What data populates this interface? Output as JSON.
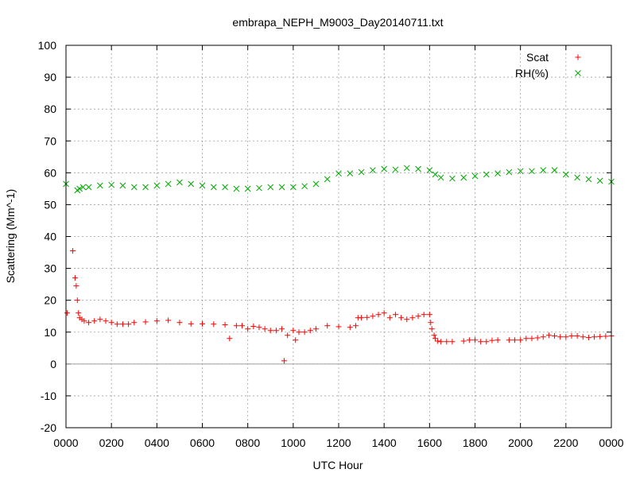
{
  "chart_data": {
    "type": "scatter",
    "title": "embrapa_NEPH_M9003_Day20140711.txt",
    "xlabel": "UTC Hour",
    "ylabel": "Scattering (Mm^-1)",
    "xlim": [
      0,
      24
    ],
    "ylim": [
      -20,
      100
    ],
    "grid": true,
    "legend_position": "top-right",
    "x_ticks": [
      {
        "value": 0,
        "label": "0000"
      },
      {
        "value": 2,
        "label": "0200"
      },
      {
        "value": 4,
        "label": "0400"
      },
      {
        "value": 6,
        "label": "0600"
      },
      {
        "value": 8,
        "label": "0800"
      },
      {
        "value": 10,
        "label": "1000"
      },
      {
        "value": 12,
        "label": "1200"
      },
      {
        "value": 14,
        "label": "1400"
      },
      {
        "value": 16,
        "label": "1600"
      },
      {
        "value": 18,
        "label": "1800"
      },
      {
        "value": 20,
        "label": "2000"
      },
      {
        "value": 22,
        "label": "2200"
      },
      {
        "value": 24,
        "label": "0000"
      }
    ],
    "y_ticks": [
      -20,
      -10,
      0,
      10,
      20,
      30,
      40,
      50,
      60,
      70,
      80,
      90,
      100
    ],
    "series": [
      {
        "name": "Scat",
        "marker": "plus",
        "color": "#ff0000",
        "x": [
          0.05,
          0.3,
          0.4,
          0.45,
          0.5,
          0.55,
          0.6,
          0.7,
          0.8,
          1.0,
          1.25,
          1.5,
          1.75,
          2.0,
          2.25,
          2.5,
          2.75,
          3.0,
          3.5,
          4.0,
          4.5,
          5.0,
          5.5,
          6.0,
          6.5,
          7.0,
          7.2,
          7.5,
          7.75,
          8.0,
          8.25,
          8.5,
          8.75,
          9.0,
          9.25,
          9.5,
          9.6,
          9.75,
          10.0,
          10.1,
          10.25,
          10.5,
          10.75,
          11.0,
          11.5,
          12.0,
          12.5,
          12.75,
          12.85,
          13.0,
          13.25,
          13.5,
          13.75,
          14.0,
          14.25,
          14.5,
          14.75,
          15.0,
          15.25,
          15.5,
          15.75,
          16.0,
          16.05,
          16.1,
          16.2,
          16.25,
          16.35,
          16.5,
          16.75,
          17.0,
          17.5,
          17.75,
          18.0,
          18.25,
          18.5,
          18.75,
          19.0,
          19.5,
          19.75,
          20.0,
          20.25,
          20.5,
          20.75,
          21.0,
          21.25,
          21.5,
          21.75,
          22.0,
          22.25,
          22.5,
          22.75,
          23.0,
          23.25,
          23.5,
          23.75,
          24.0
        ],
        "y": [
          16,
          35.5,
          27,
          24.5,
          20,
          16,
          14.5,
          14,
          13.5,
          13,
          13.5,
          14,
          13.5,
          13,
          12.5,
          12.5,
          12.5,
          13,
          13.2,
          13.5,
          13.7,
          13,
          12.6,
          12.6,
          12.5,
          12.3,
          8,
          12,
          12,
          11,
          11.8,
          11.5,
          11,
          10.5,
          10.5,
          11,
          1,
          9,
          10.5,
          7.5,
          10,
          10,
          10.5,
          11,
          12,
          11.7,
          11.5,
          12,
          14.5,
          14.5,
          14.6,
          15,
          15.5,
          16,
          14.5,
          15.5,
          14.5,
          14,
          14.5,
          15,
          15.5,
          15.5,
          13,
          11,
          9,
          8,
          7.2,
          7,
          7,
          7,
          7.2,
          7.5,
          7.5,
          7,
          7,
          7.4,
          7.5,
          7.5,
          7.5,
          7.5,
          8,
          8,
          8.2,
          8.5,
          9,
          8.8,
          8.5,
          8.5,
          8.8,
          8.8,
          8.5,
          8.3,
          8.5,
          8.6,
          8.7,
          8.8
        ]
      },
      {
        "name": "RH(%)",
        "marker": "cross",
        "color": "#00aa00",
        "x": [
          0,
          0.5,
          0.6,
          0.75,
          1.0,
          1.5,
          2.0,
          2.5,
          3.0,
          3.5,
          4.0,
          4.5,
          5.0,
          5.5,
          6.0,
          6.5,
          7.0,
          7.5,
          8.0,
          8.5,
          9.0,
          9.5,
          10.0,
          10.5,
          11.0,
          11.5,
          12.0,
          12.5,
          13.0,
          13.5,
          14.0,
          14.5,
          15.0,
          15.5,
          16.0,
          16.25,
          16.5,
          17.0,
          17.5,
          18.0,
          18.5,
          19.0,
          19.5,
          20.0,
          20.5,
          21.0,
          21.5,
          22.0,
          22.5,
          23.0,
          23.5,
          24.0
        ],
        "y": [
          56.5,
          54.5,
          55,
          55.5,
          55.5,
          56,
          56.2,
          56,
          55.5,
          55.5,
          56,
          56.5,
          57,
          56.5,
          56,
          55.5,
          55.5,
          55,
          55,
          55.2,
          55.5,
          55.5,
          55.5,
          55.8,
          56.5,
          58,
          59.8,
          59.8,
          60.2,
          60.8,
          61.2,
          61,
          61.5,
          61.2,
          60.8,
          59.5,
          58.5,
          58.2,
          58.5,
          59,
          59.5,
          59.8,
          60.2,
          60.5,
          60.5,
          60.8,
          60.8,
          59.5,
          58.5,
          58,
          57.5,
          57.2
        ]
      }
    ]
  }
}
